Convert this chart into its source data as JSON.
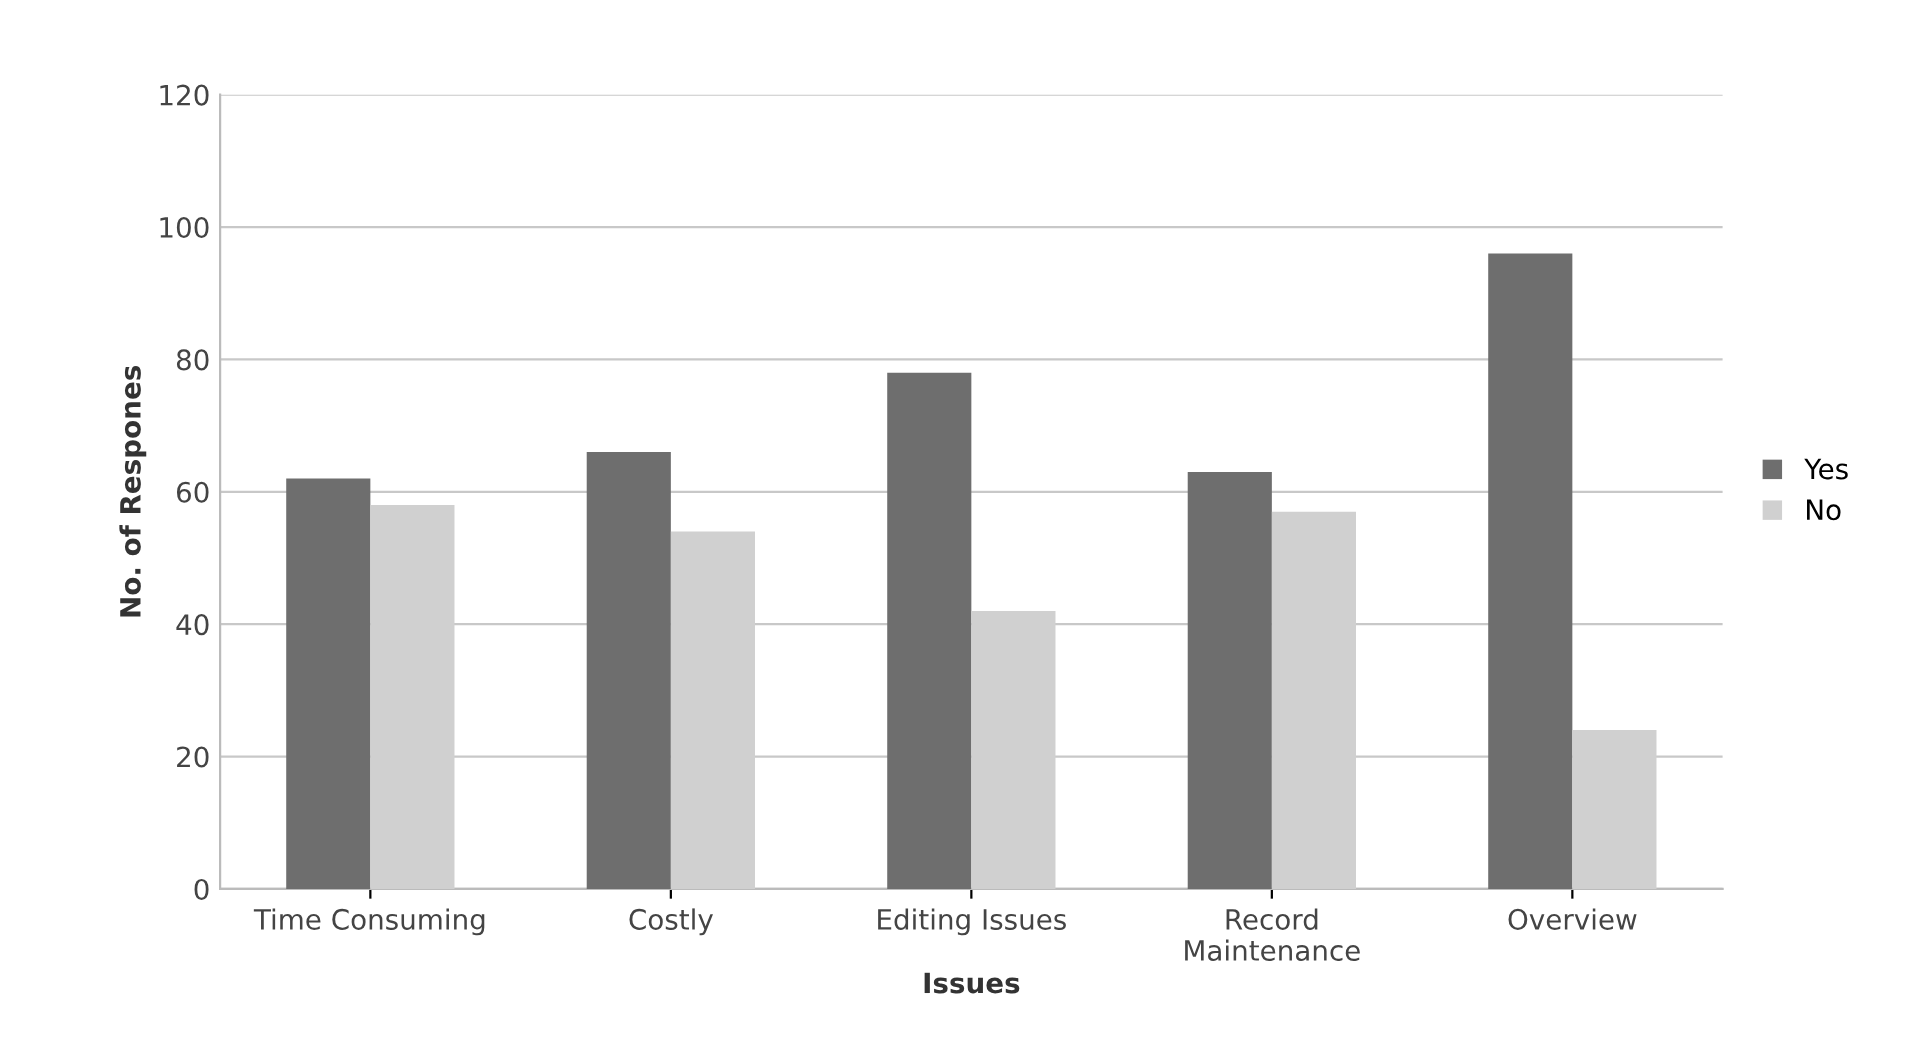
{
  "chart_data": {
    "type": "bar",
    "xlabel": "Issues",
    "ylabel": "No. of Respones",
    "categories": [
      "Time Consuming",
      "Costly",
      "Editing Issues",
      "Record\nMaintenance",
      "Overview"
    ],
    "series": [
      {
        "name": "Yes",
        "color": "#6e6e6e",
        "values": [
          62,
          66,
          78,
          63,
          96
        ]
      },
      {
        "name": "No",
        "color": "#d0d0d0",
        "values": [
          58,
          54,
          42,
          57,
          24
        ]
      }
    ],
    "ylim": [
      0,
      120
    ],
    "yticks": [
      0,
      20,
      40,
      60,
      80,
      100,
      120
    ],
    "grid": "y",
    "legend": "right"
  }
}
